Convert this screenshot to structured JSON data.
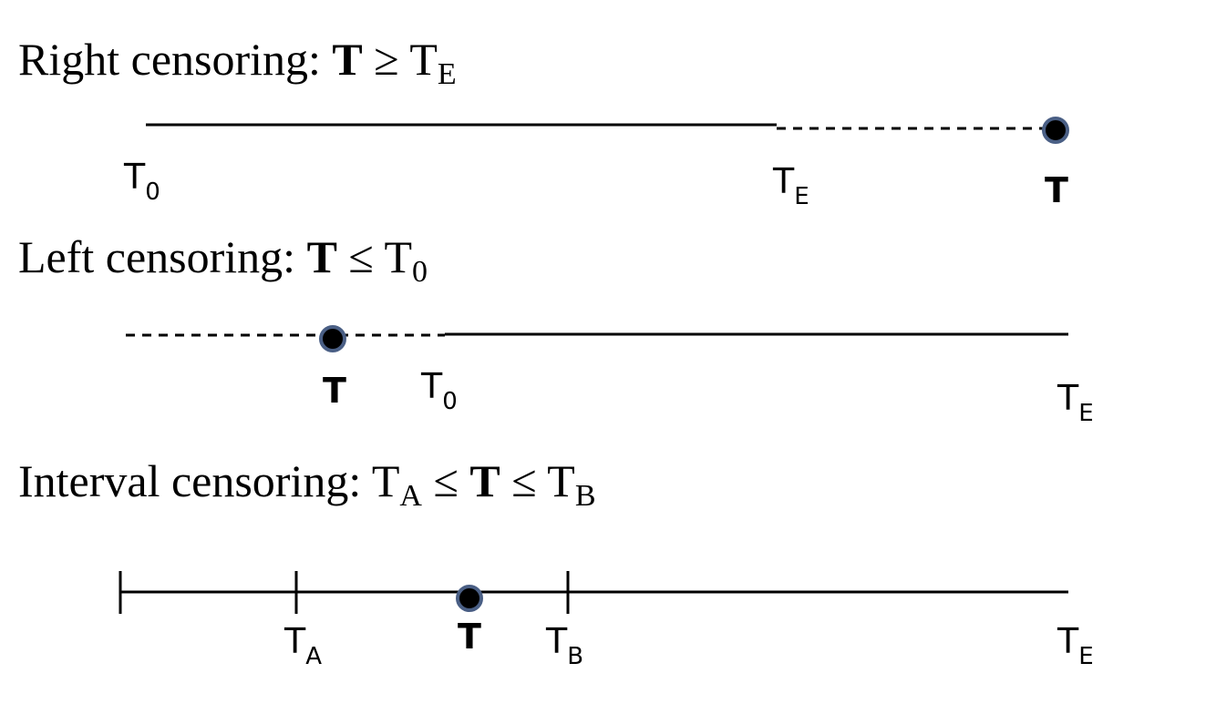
{
  "right": {
    "heading_prefix": "Right censoring: ",
    "heading_T": "T",
    "heading_op": " ≥ T",
    "heading_sub": "E",
    "labels": {
      "t0_base": "T",
      "t0_sub": "0",
      "te_base": "T",
      "te_sub": "E",
      "t": "T"
    }
  },
  "left": {
    "heading_prefix": "Left censoring: ",
    "heading_T": "T",
    "heading_op": " ≤ T",
    "heading_sub": "0",
    "labels": {
      "t": "T",
      "t0_base": "T",
      "t0_sub": "0",
      "te_base": "T",
      "te_sub": "E"
    }
  },
  "interval": {
    "heading_prefix": "Interval censoring: T",
    "heading_sub1": "A",
    "heading_op1": " ≤ ",
    "heading_T": "T",
    "heading_op2": " ≤ T",
    "heading_sub2": "B",
    "labels": {
      "ta_base": "T",
      "ta_sub": "A",
      "t": "T",
      "tb_base": "T",
      "tb_sub": "B",
      "te_base": "T",
      "te_sub": "E"
    }
  },
  "colors": {
    "line": "#000000",
    "point_fill": "#000000",
    "point_stroke": "#4a5f85"
  }
}
